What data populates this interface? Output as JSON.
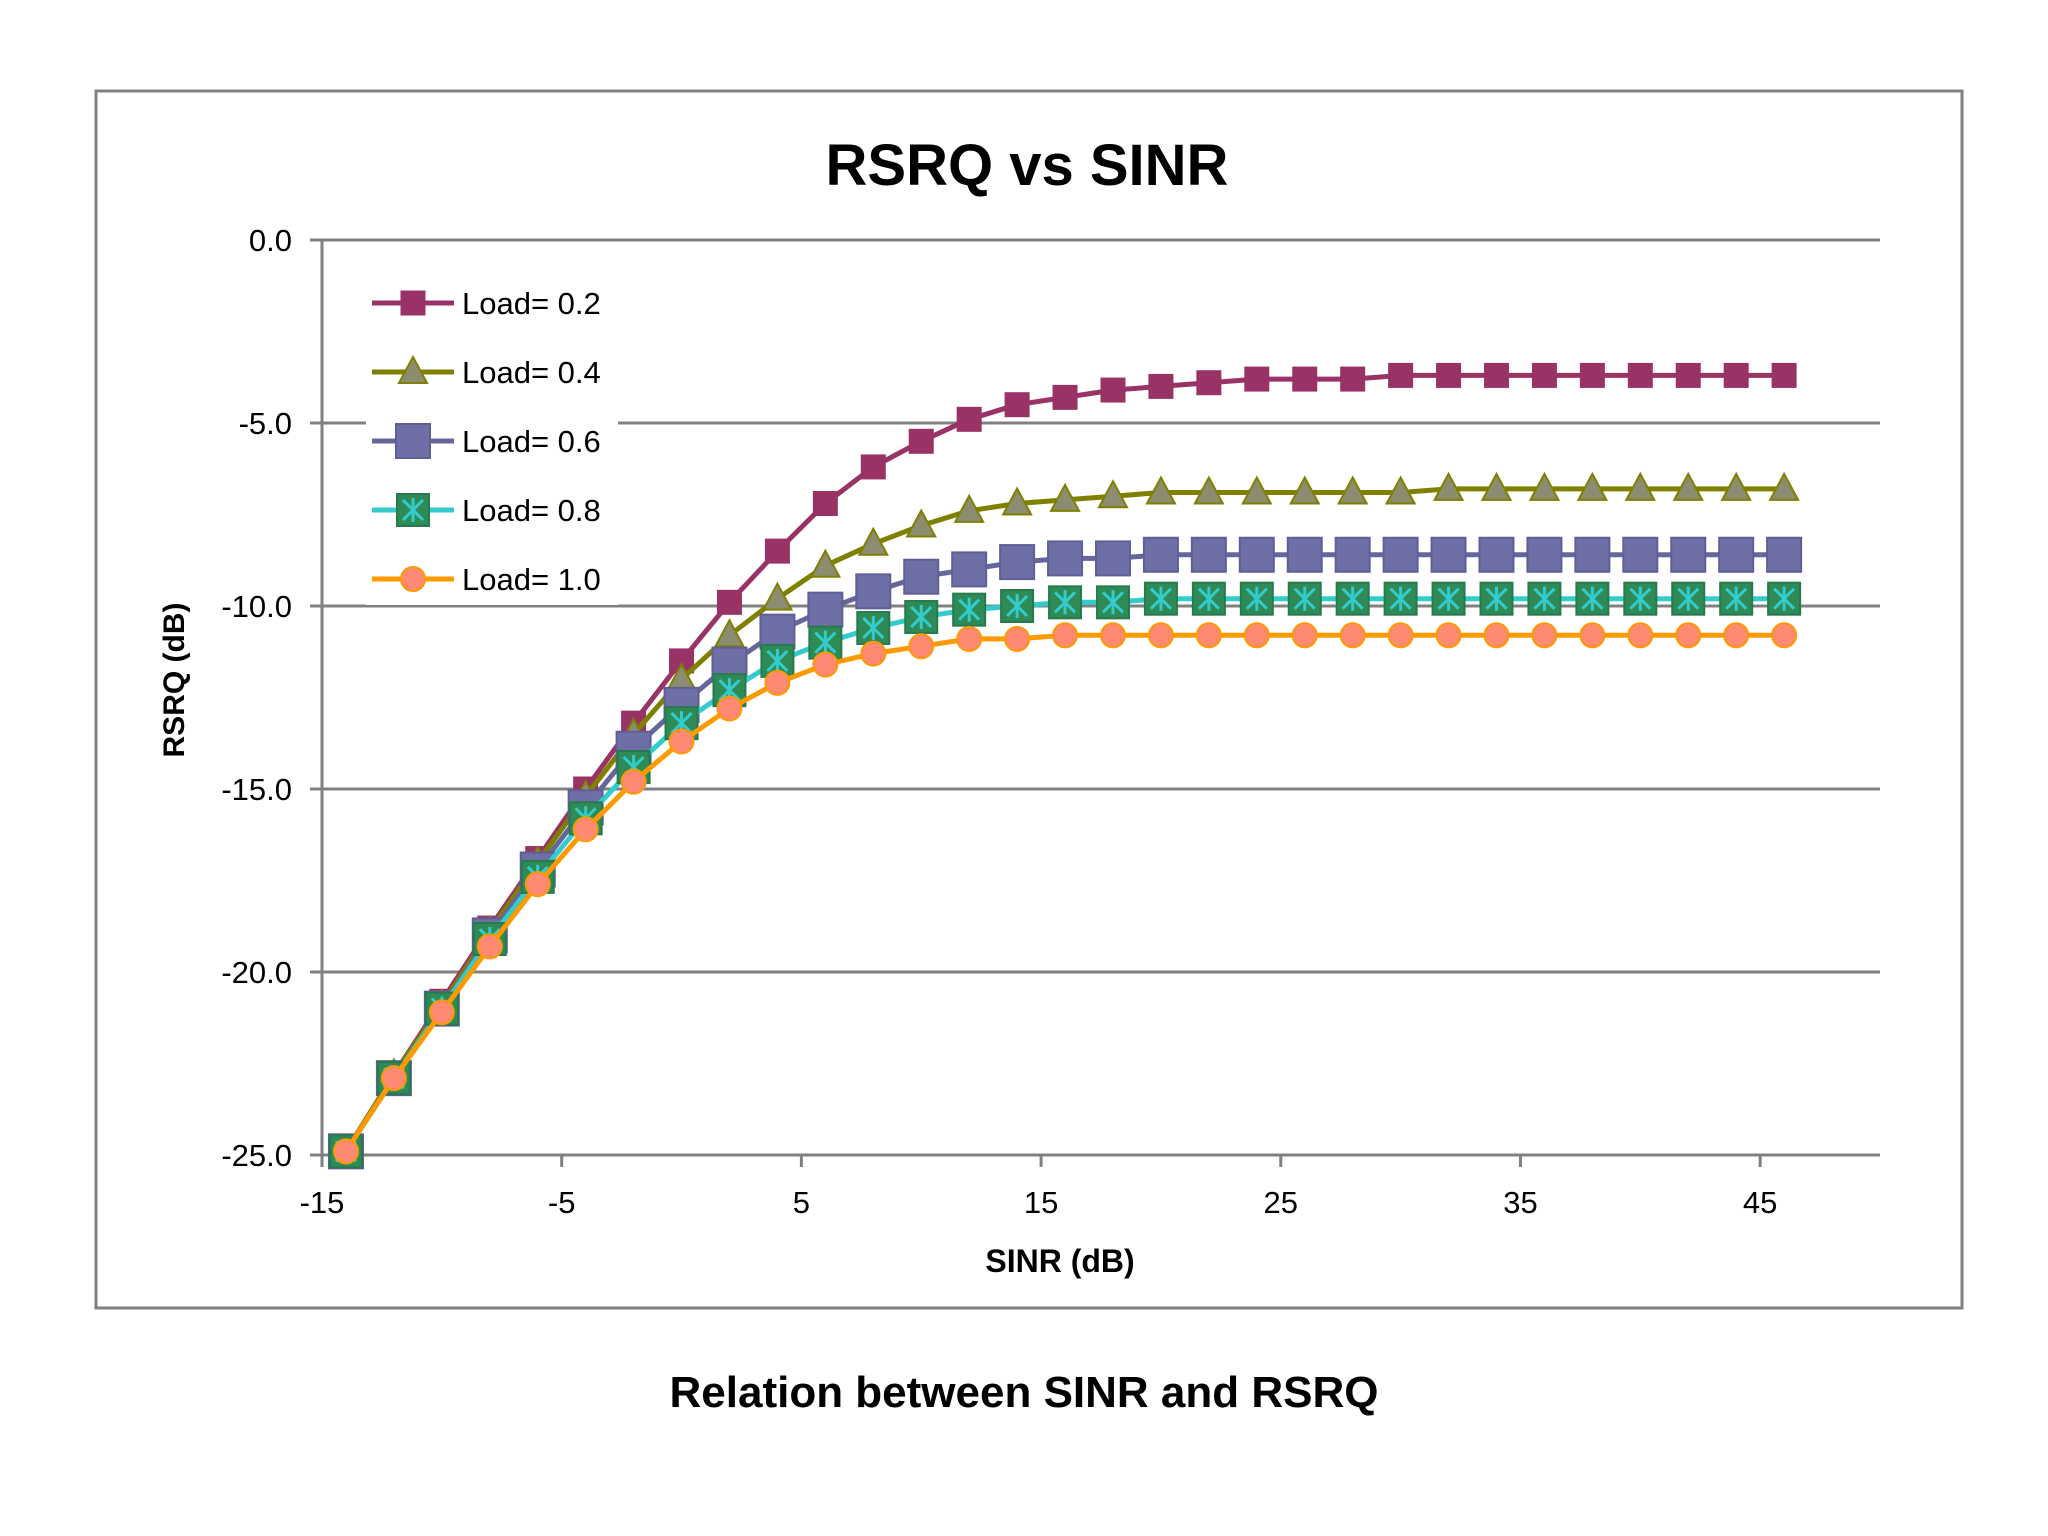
{
  "chart_data": {
    "type": "line",
    "title": "RSRQ vs SINR",
    "xlabel": "SINR (dB)",
    "ylabel": "RSRQ (dB)",
    "xlim": [
      -15,
      50
    ],
    "ylim": [
      -25,
      0
    ],
    "xticks": [
      "-15",
      "-5",
      "5",
      "15",
      "25",
      "35",
      "45"
    ],
    "yticks": [
      "0.0",
      "-5.0",
      "-10.0",
      "-15.0",
      "-20.0",
      "-25.0"
    ],
    "grid": "horizontal",
    "legend_position": "top-left",
    "x": [
      -14,
      -12,
      -10,
      -8,
      -6,
      -4,
      -2,
      0,
      2,
      4,
      6,
      8,
      10,
      12,
      14,
      16,
      18,
      20,
      22,
      24,
      26,
      28,
      30,
      32,
      34,
      36,
      38,
      40,
      42,
      44,
      46
    ],
    "series": [
      {
        "name": "Load= 0.2",
        "color": "#993366",
        "marker": "square",
        "values": [
          -24.9,
          -22.8,
          -20.8,
          -18.8,
          -16.9,
          -15.0,
          -13.2,
          -11.5,
          -9.9,
          -8.5,
          -7.2,
          -6.2,
          -5.5,
          -4.9,
          -4.5,
          -4.3,
          -4.1,
          -4.0,
          -3.9,
          -3.8,
          -3.8,
          -3.8,
          -3.7,
          -3.7,
          -3.7,
          -3.7,
          -3.7,
          -3.7,
          -3.7,
          -3.7,
          -3.7
        ]
      },
      {
        "name": "Load= 0.4",
        "color": "#808000",
        "marker": "triangle",
        "values": [
          -24.9,
          -22.8,
          -20.9,
          -18.9,
          -17.0,
          -15.2,
          -13.5,
          -12.0,
          -10.8,
          -9.8,
          -8.9,
          -8.3,
          -7.8,
          -7.4,
          -7.2,
          -7.1,
          -7.0,
          -6.9,
          -6.9,
          -6.9,
          -6.9,
          -6.9,
          -6.9,
          -6.8,
          -6.8,
          -6.8,
          -6.8,
          -6.8,
          -6.8,
          -6.8,
          -6.8
        ]
      },
      {
        "name": "Load= 0.6",
        "color": "#666699",
        "marker": "square-large",
        "values": [
          -24.9,
          -22.9,
          -21.0,
          -19.0,
          -17.2,
          -15.5,
          -13.9,
          -12.7,
          -11.6,
          -10.7,
          -10.1,
          -9.6,
          -9.2,
          -9.0,
          -8.8,
          -8.7,
          -8.7,
          -8.6,
          -8.6,
          -8.6,
          -8.6,
          -8.6,
          -8.6,
          -8.6,
          -8.6,
          -8.6,
          -8.6,
          -8.6,
          -8.6,
          -8.6,
          -8.6
        ]
      },
      {
        "name": "Load= 0.8",
        "color": "#33CCCC",
        "marker": "star-box",
        "values": [
          -24.9,
          -22.9,
          -21.0,
          -19.1,
          -17.4,
          -15.8,
          -14.4,
          -13.2,
          -12.3,
          -11.5,
          -11.0,
          -10.6,
          -10.3,
          -10.1,
          -10.0,
          -9.9,
          -9.9,
          -9.8,
          -9.8,
          -9.8,
          -9.8,
          -9.8,
          -9.8,
          -9.8,
          -9.8,
          -9.8,
          -9.8,
          -9.8,
          -9.8,
          -9.8,
          -9.8
        ]
      },
      {
        "name": "Load= 1.0",
        "color": "#FF9900",
        "marker": "circle",
        "values": [
          -24.9,
          -22.9,
          -21.1,
          -19.3,
          -17.6,
          -16.1,
          -14.8,
          -13.7,
          -12.8,
          -12.1,
          -11.6,
          -11.3,
          -11.1,
          -10.9,
          -10.9,
          -10.8,
          -10.8,
          -10.8,
          -10.8,
          -10.8,
          -10.8,
          -10.8,
          -10.8,
          -10.8,
          -10.8,
          -10.8,
          -10.8,
          -10.8,
          -10.8,
          -10.8,
          -10.8
        ]
      }
    ]
  },
  "caption": "Relation between SINR and RSRQ"
}
